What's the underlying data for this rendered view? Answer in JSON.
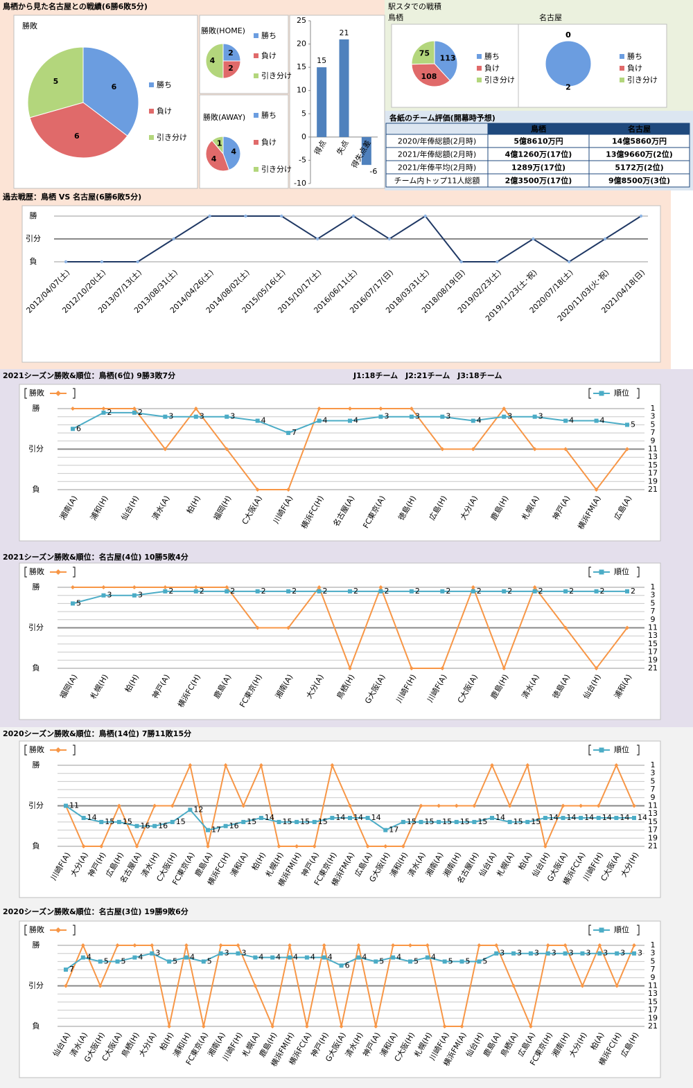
{
  "header": {
    "title": "鳥栖から見た名古屋との戦績(6勝6敗5分)",
    "stadium_title": "駅スタでの戦積"
  },
  "table": {
    "title": "各紙のチーム評価(開幕時予想)",
    "columns": [
      "鳥栖",
      "名古屋"
    ],
    "rows": [
      [
        "2020/年俸総額(2月時)",
        "5億8610万円",
        "14億5860万円"
      ],
      [
        "2021/年俸総額(2月時)",
        "4億1260万(17位)",
        "13億9660万(2位)"
      ],
      [
        "2021/年俸平均(2月時)",
        "1289万(17位)",
        "5172万(2位)"
      ],
      [
        "チーム内トップ11人総額",
        "2億3500万(17位)",
        "9億8500万(3位)"
      ]
    ]
  },
  "chart_data": [
    {
      "type": "pie",
      "title": "勝敗",
      "categories": [
        "勝ち",
        "負け",
        "引き分け"
      ],
      "values": [
        6,
        6,
        5
      ],
      "colors": [
        "#6b9de0",
        "#e06a6a",
        "#b3d67c"
      ]
    },
    {
      "type": "pie",
      "title": "勝敗(HOME)",
      "categories": [
        "勝ち",
        "負け",
        "引き分け"
      ],
      "values": [
        2,
        2,
        4
      ],
      "colors": [
        "#6b9de0",
        "#e06a6a",
        "#b3d67c"
      ]
    },
    {
      "type": "pie",
      "title": "勝敗(AWAY)",
      "categories": [
        "勝ち",
        "負け",
        "引き分け"
      ],
      "values": [
        4,
        4,
        1
      ],
      "colors": [
        "#6b9de0",
        "#e06a6a",
        "#b3d67c"
      ]
    },
    {
      "type": "bar",
      "categories": [
        "得点",
        "失点",
        "得失点差"
      ],
      "values": [
        15,
        21,
        -6
      ],
      "color": "#4f81bd",
      "ylim": [
        -10,
        25
      ],
      "yticks": [
        -10,
        -5,
        0,
        5,
        10,
        15,
        20,
        25
      ],
      "grid": false
    },
    {
      "type": "pie",
      "title": "鳥栖",
      "categories": [
        "勝ち",
        "負け",
        "引き分け"
      ],
      "values": [
        113,
        108,
        75
      ],
      "colors": [
        "#6b9de0",
        "#e06a6a",
        "#b3d67c"
      ]
    },
    {
      "type": "pie",
      "title": "名古屋",
      "categories": [
        "勝ち",
        "負け",
        "引き分け"
      ],
      "values": [
        2,
        0,
        0
      ],
      "colors": [
        "#6b9de0",
        "#e06a6a",
        "#b3d67c"
      ]
    },
    {
      "type": "line",
      "title": "過去戦歴：鳥栖 VS 名古屋(6勝6敗5分)",
      "categories": [
        "2012/04/07(土)",
        "2012/10/20(土)",
        "2013/07/13(土)",
        "2013/08/31(土)",
        "2014/04/26(土)",
        "2014/08/02(土)",
        "2015/05/16(土)",
        "2015/10/17(土)",
        "2016/06/11(土)",
        "2016/07/17(日)",
        "2018/03/31(土)",
        "2018/08/19(日)",
        "2019/02/23(土)",
        "2019/11/23(土･祝)",
        "2020/07/18(土)",
        "2020/11/03(火･祝)",
        "2021/04/18(日)"
      ],
      "values": [
        0,
        0,
        0,
        1,
        2,
        2,
        2,
        1,
        2,
        1,
        2,
        0,
        0,
        1,
        0,
        1,
        2
      ],
      "color": "#1f3864",
      "ylim": [
        0,
        2
      ],
      "yticks": [
        {
          "value": 0,
          "label": "負"
        },
        {
          "value": 1,
          "label": "引分"
        },
        {
          "value": 2,
          "label": "勝"
        }
      ],
      "grid": true
    },
    {
      "type": "line",
      "title": "2021シーズン勝敗&順位：鳥栖(6位) 9勝3敗7分",
      "annotation": "J1:18チーム　J2:21チーム　J3:18チーム",
      "categories": [
        "湘南(A)",
        "浦和(H)",
        "仙台(H)",
        "清水(A)",
        "柏(H)",
        "福岡(H)",
        "C大阪(A)",
        "川崎F(A)",
        "横浜FC(H)",
        "名古屋(A)",
        "FC東京(A)",
        "徳島(H)",
        "広島(H)",
        "大分(A)",
        "鹿島(H)",
        "札幌(A)",
        "神戸(A)",
        "横浜FM(A)",
        "広島(A)"
      ],
      "series": [
        {
          "name": "勝敗",
          "color": "#f79646",
          "values": [
            2,
            2,
            2,
            1,
            2,
            1,
            0,
            0,
            2,
            2,
            2,
            2,
            1,
            1,
            2,
            1,
            1,
            0,
            1
          ]
        },
        {
          "name": "順位",
          "color": "#4bacc6",
          "axis": "y2",
          "values": [
            6,
            2,
            2,
            3,
            3,
            3,
            4,
            7,
            4,
            4,
            3,
            3,
            3,
            4,
            3,
            3,
            4,
            4,
            5
          ]
        }
      ],
      "ylim": [
        0,
        2
      ],
      "yticks": [
        {
          "value": 0,
          "label": "負"
        },
        {
          "value": 1,
          "label": "引分"
        },
        {
          "value": 2,
          "label": "勝"
        }
      ],
      "y2lim": [
        21,
        1
      ],
      "y2ticks": [
        1,
        3,
        5,
        7,
        9,
        11,
        13,
        15,
        17,
        19,
        21
      ],
      "grid": true
    },
    {
      "type": "line",
      "title": "2021シーズン勝敗&順位：名古屋(4位) 10勝5敗4分",
      "categories": [
        "福岡(A)",
        "札幌(H)",
        "柏(H)",
        "神戸(A)",
        "横浜FC(H)",
        "鹿島(A)",
        "FC東京(H)",
        "湘南(A)",
        "大分(A)",
        "鳥栖(H)",
        "G大阪(A)",
        "川崎F(H)",
        "川崎F(A)",
        "C大阪(A)",
        "鹿島(H)",
        "清水(A)",
        "徳島(A)",
        "仙台(H)",
        "浦和(A)"
      ],
      "series": [
        {
          "name": "勝敗",
          "color": "#f79646",
          "values": [
            2,
            2,
            2,
            2,
            2,
            2,
            1,
            1,
            2,
            0,
            2,
            0,
            0,
            2,
            0,
            2,
            1,
            0,
            1
          ]
        },
        {
          "name": "順位",
          "color": "#4bacc6",
          "axis": "y2",
          "values": [
            5,
            3,
            3,
            2,
            2,
            2,
            2,
            2,
            2,
            2,
            2,
            2,
            2,
            2,
            2,
            2,
            2,
            2,
            2
          ]
        }
      ],
      "ylim": [
        0,
        2
      ],
      "yticks": [
        {
          "value": 0,
          "label": "負"
        },
        {
          "value": 1,
          "label": "引分"
        },
        {
          "value": 2,
          "label": "勝"
        }
      ],
      "y2lim": [
        21,
        1
      ],
      "y2ticks": [
        1,
        3,
        5,
        7,
        9,
        11,
        13,
        15,
        17,
        19,
        21
      ],
      "grid": true
    },
    {
      "type": "line",
      "title": "2020シーズン勝敗&順位：鳥栖(14位) 7勝11敗15分",
      "categories": [
        "川崎F(A)",
        "大分(A)",
        "神戸(H)",
        "広島(H)",
        "名古屋(A)",
        "清水(H)",
        "C大阪(H)",
        "FC東京(A)",
        "鹿島(A)",
        "横浜FC(H)",
        "浦和(A)",
        "柏(H)",
        "札幌(H)",
        "横浜FM(H)",
        "神戸(A)",
        "FC東京(H)",
        "横浜FM(A)",
        "広島(A)",
        "G大阪(H)",
        "浦和(H)",
        "清水(A)",
        "湘南(A)",
        "湘南(H)",
        "名古屋(H)",
        "仙台(A)",
        "札幌(A)",
        "柏(A)",
        "仙台(H)",
        "G大阪(A)",
        "横浜FC(A)",
        "川崎F(H)",
        "C大阪(A)",
        "大分(H)"
      ],
      "series": [
        {
          "name": "勝敗",
          "color": "#f79646",
          "values": [
            1,
            0,
            0,
            1,
            0,
            1,
            1,
            2,
            0,
            2,
            1,
            2,
            0,
            0,
            0,
            2,
            1,
            0,
            0,
            0,
            1,
            1,
            1,
            1,
            2,
            1,
            2,
            0,
            1,
            1,
            1,
            2,
            1
          ]
        },
        {
          "name": "順位",
          "color": "#4bacc6",
          "axis": "y2",
          "values": [
            11,
            14,
            15,
            15,
            16,
            16,
            15,
            12,
            17,
            16,
            15,
            14,
            15,
            15,
            15,
            14,
            14,
            14,
            17,
            15,
            15,
            15,
            15,
            15,
            14,
            15,
            15,
            14,
            14,
            14,
            14,
            14,
            14
          ]
        }
      ],
      "ylim": [
        0,
        2
      ],
      "yticks": [
        {
          "value": 0,
          "label": "負"
        },
        {
          "value": 1,
          "label": "引分"
        },
        {
          "value": 2,
          "label": "勝"
        }
      ],
      "y2lim": [
        21,
        1
      ],
      "y2ticks": [
        1,
        3,
        5,
        7,
        9,
        11,
        13,
        15,
        17,
        19,
        21
      ],
      "grid": true
    },
    {
      "type": "line",
      "title": "2020シーズン勝敗&順位：名古屋(3位) 19勝9敗6分",
      "categories": [
        "仙台(A)",
        "清水(A)",
        "G大阪(H)",
        "C大阪(A)",
        "鳥栖(H)",
        "大分(A)",
        "柏(H)",
        "浦和(H)",
        "FC東京(A)",
        "湘南(A)",
        "川崎F(H)",
        "札幌(A)",
        "鹿島(H)",
        "横浜FM(H)",
        "横浜FC(A)",
        "神戸(H)",
        "G大阪(A)",
        "清水(H)",
        "神戸(A)",
        "浦和(A)",
        "C大阪(H)",
        "札幌(H)",
        "川崎F(A)",
        "横浜FM(A)",
        "仙台(H)",
        "鹿島(A)",
        "鳥栖(A)",
        "広島(A)",
        "FC東京(H)",
        "湘南(H)",
        "大分(H)",
        "柏(A)",
        "横浜FC(H)",
        "広島(H)"
      ],
      "series": [
        {
          "name": "勝敗",
          "color": "#f79646",
          "values": [
            1,
            2,
            1,
            2,
            2,
            2,
            0,
            2,
            0,
            2,
            2,
            1,
            0,
            2,
            0,
            2,
            0,
            2,
            0,
            2,
            2,
            2,
            0,
            0,
            2,
            2,
            1,
            0,
            2,
            2,
            1,
            2,
            1,
            2
          ]
        },
        {
          "name": "順位",
          "color": "#4bacc6",
          "axis": "y2",
          "values": [
            7,
            4,
            5,
            5,
            4,
            3,
            5,
            4,
            5,
            3,
            3,
            4,
            4,
            4,
            4,
            4,
            6,
            4,
            5,
            4,
            5,
            4,
            5,
            5,
            5,
            3,
            3,
            3,
            3,
            3,
            3,
            3,
            3,
            3
          ]
        }
      ],
      "ylim": [
        0,
        2
      ],
      "yticks": [
        {
          "value": 0,
          "label": "負"
        },
        {
          "value": 1,
          "label": "引分"
        },
        {
          "value": 2,
          "label": "勝"
        }
      ],
      "y2lim": [
        21,
        1
      ],
      "y2ticks": [
        1,
        3,
        5,
        7,
        9,
        11,
        13,
        15,
        17,
        19,
        21
      ],
      "grid": true
    }
  ]
}
